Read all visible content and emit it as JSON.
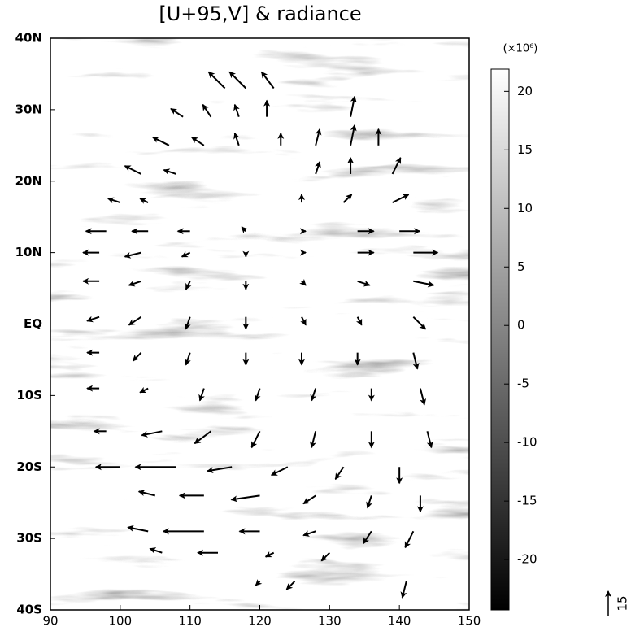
{
  "chart_data": {
    "type": "quiver",
    "title": "[U+95,V] & radiance",
    "xlim": [
      90,
      150
    ],
    "xticks": [
      90,
      100,
      110,
      120,
      130,
      140,
      150
    ],
    "ylim": [
      -40,
      40
    ],
    "yticks": [
      {
        "value": -40,
        "label": "40S"
      },
      {
        "value": -30,
        "label": "30S"
      },
      {
        "value": -20,
        "label": "20S"
      },
      {
        "value": -10,
        "label": "10S"
      },
      {
        "value": 0,
        "label": "EQ"
      },
      {
        "value": 10,
        "label": "10N"
      },
      {
        "value": 20,
        "label": "20N"
      },
      {
        "value": 30,
        "label": "30N"
      },
      {
        "value": 40,
        "label": "40N"
      }
    ],
    "colorbar_label": "(×10⁶)",
    "clim": [
      -24.3,
      21.9
    ],
    "cticks": [
      -20,
      -15,
      -10,
      -5,
      0,
      5,
      10,
      15,
      20
    ],
    "reference_vector": 15,
    "color": "#000000",
    "x": [
      115,
      118,
      122,
      109,
      113,
      117,
      121,
      133,
      107,
      112,
      117,
      123,
      128,
      133,
      137,
      103,
      108,
      128,
      133,
      139,
      100,
      104,
      126,
      132,
      139,
      98,
      104,
      110,
      118,
      126,
      134,
      140,
      97,
      103,
      110,
      118,
      126,
      134,
      142,
      97,
      103,
      110,
      118,
      126,
      134,
      142,
      97,
      103,
      110,
      118,
      126,
      134,
      142,
      97,
      103,
      110,
      118,
      126,
      134,
      142,
      97,
      104,
      112,
      120,
      128,
      136,
      143,
      98,
      106,
      113,
      120,
      128,
      136,
      144,
      100,
      108,
      116,
      124,
      132,
      140,
      105,
      112,
      120,
      128,
      136,
      143,
      104,
      112,
      120,
      128,
      136,
      142,
      106,
      114,
      122,
      130,
      120,
      125,
      141
    ],
    "y": [
      33,
      33,
      33,
      29,
      29,
      29,
      29,
      29,
      25,
      25,
      25,
      25,
      25,
      25,
      25,
      21,
      21,
      21,
      21,
      21,
      17,
      17,
      17,
      17,
      17,
      13,
      13,
      13,
      13,
      13,
      13,
      13,
      10,
      10,
      10,
      10,
      10,
      10,
      10,
      6,
      6,
      6,
      6,
      6,
      6,
      6,
      1,
      1,
      1,
      1,
      1,
      1,
      1,
      -4,
      -4,
      -4,
      -4,
      -4,
      -4,
      -4,
      -9,
      -9,
      -9,
      -9,
      -9,
      -9,
      -9,
      -15,
      -15,
      -15,
      -15,
      -15,
      -15,
      -15,
      -20,
      -20,
      -20,
      -20,
      -20,
      -20,
      -24,
      -24,
      -24,
      -24,
      -24,
      -24,
      -29,
      -29,
      -29,
      -29,
      -29,
      -29,
      -32,
      -32,
      -32,
      -32,
      -36,
      -36,
      -36
    ],
    "u": [
      -10,
      -10,
      -7.5,
      -7.5,
      -5,
      -2.5,
      0,
      2.5,
      -10,
      -7.5,
      -2.5,
      0,
      2.5,
      2.5,
      0,
      -10,
      -7.5,
      2.5,
      0,
      5,
      -7.5,
      -5,
      0,
      5,
      10,
      -12.5,
      -10,
      -7.5,
      -2.5,
      2.5,
      10,
      12.5,
      -10,
      -10,
      -5,
      0,
      2.5,
      10,
      15,
      -10,
      -7.5,
      -2.5,
      0,
      2.5,
      7.5,
      12.5,
      -7.5,
      -7.5,
      -2.5,
      0,
      2.5,
      2.5,
      7.5,
      -7.5,
      -5,
      -2.5,
      0,
      0,
      0,
      2.5,
      -7.5,
      -5,
      -2.5,
      -2.5,
      -2.5,
      0,
      2.5,
      -7.5,
      -12.5,
      -10,
      -5,
      -2.5,
      0,
      2.5,
      -15,
      -25,
      -15,
      -10,
      -5,
      0,
      -10,
      -15,
      -17.5,
      -7.5,
      -2.5,
      0,
      -12.5,
      -25,
      -12.5,
      -7.5,
      -5,
      -5,
      -7.5,
      -12.5,
      -5,
      -5,
      -2.5,
      -5,
      -2.5
    ],
    "v": [
      10,
      10,
      10,
      5,
      7.5,
      7.5,
      10,
      12.5,
      5,
      5,
      7.5,
      7.5,
      10,
      12.5,
      10,
      5,
      2.5,
      7.5,
      10,
      10,
      2.5,
      2.5,
      5,
      5,
      5,
      0,
      0,
      0,
      2.5,
      0,
      0,
      0,
      0,
      -2.5,
      -2.5,
      -2.5,
      0,
      0,
      0,
      0,
      -2.5,
      -5,
      -5,
      -2.5,
      -2.5,
      -2.5,
      -2.5,
      -5,
      -7.5,
      -7.5,
      -5,
      -5,
      -7.5,
      0,
      -5,
      -7.5,
      -7.5,
      -7.5,
      -7.5,
      -10,
      0,
      -2.5,
      -7.5,
      -7.5,
      -7.5,
      -7.5,
      -10,
      0,
      -2.5,
      -7.5,
      -10,
      -10,
      -10,
      -10,
      0,
      0,
      -2.5,
      -5,
      -7.5,
      -10,
      2.5,
      0,
      -2.5,
      -5,
      -7.5,
      -10,
      2.5,
      0,
      0,
      -2.5,
      -7.5,
      -10,
      2.5,
      0,
      -2.5,
      -5,
      -2.5,
      -5,
      -10
    ]
  }
}
